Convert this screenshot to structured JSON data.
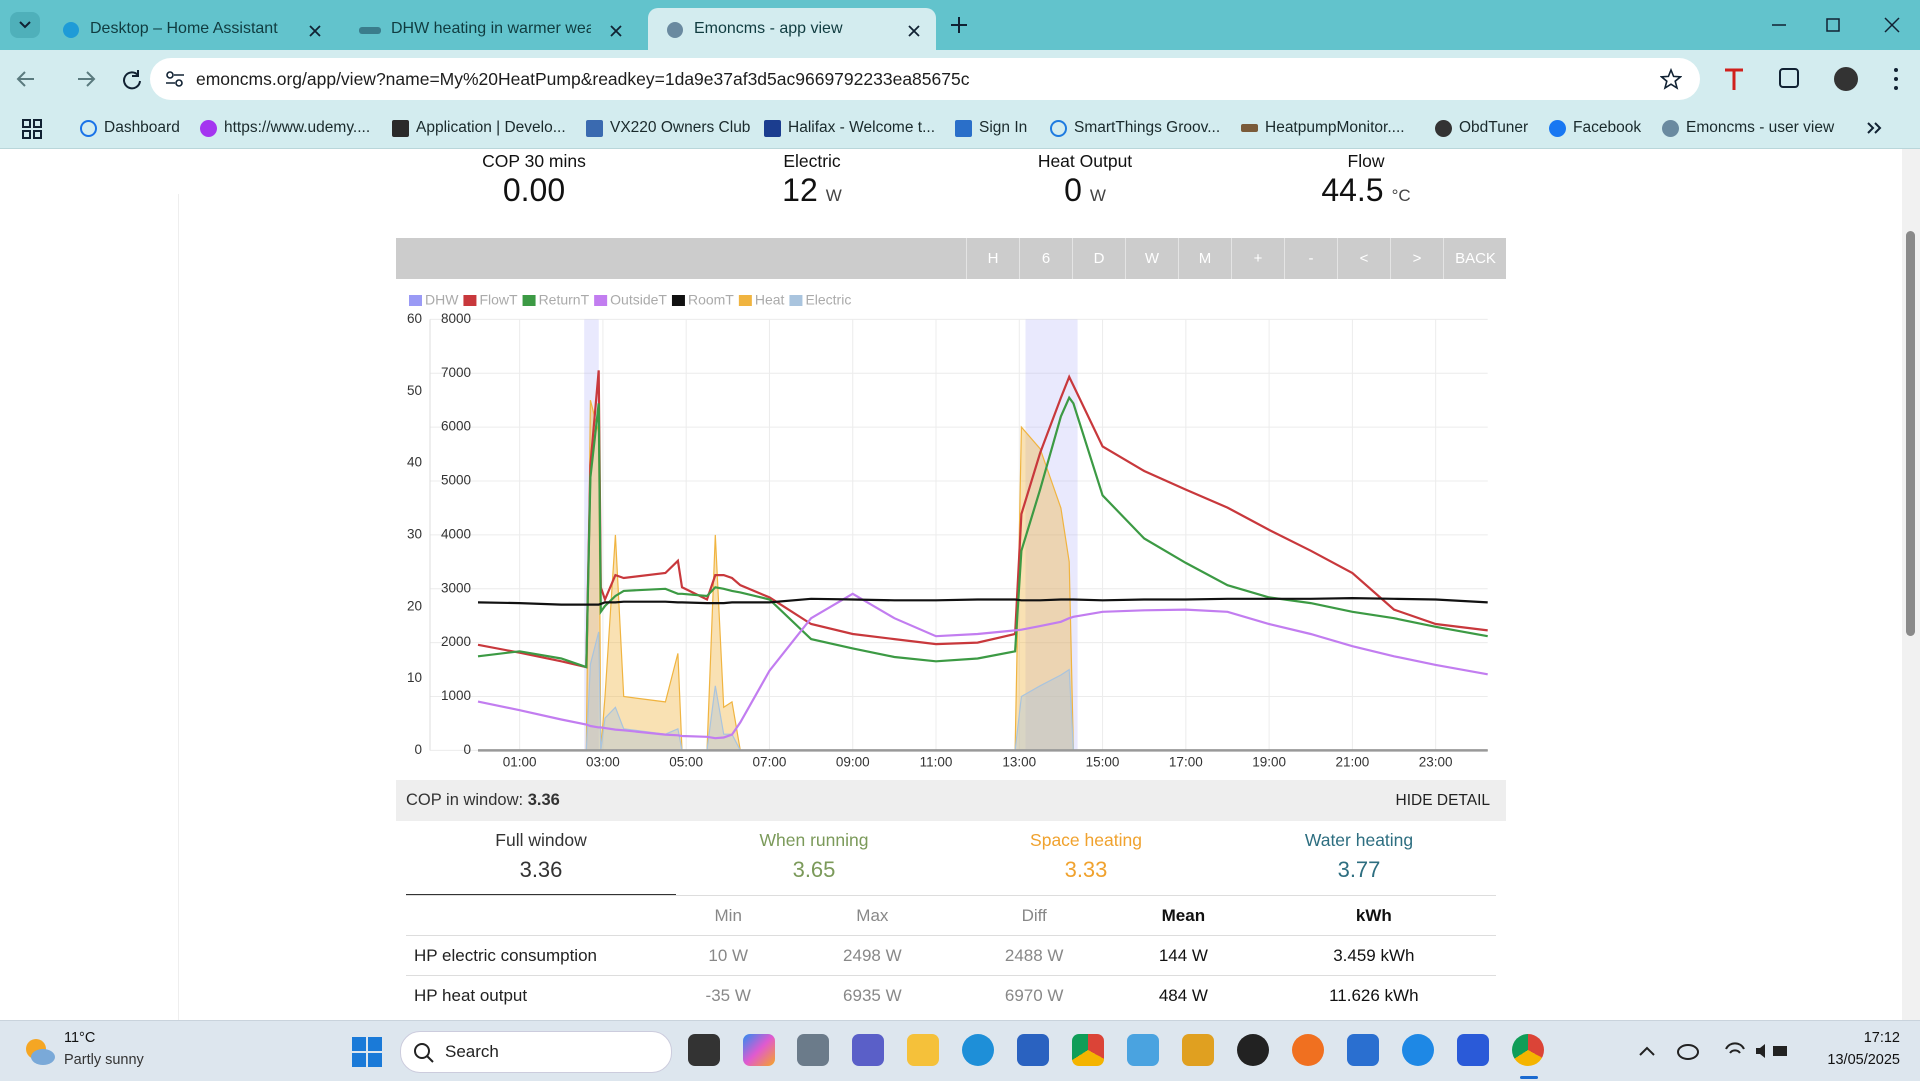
{
  "browser": {
    "tabs": [
      "Desktop – Home Assistant",
      "DHW heating in warmer weathe",
      "Emoncms - app view"
    ],
    "url": "emoncms.org/app/view?name=My%20HeatPump&readkey=1da9e37af3d5ac9669792233ea85675c",
    "bookmarks": [
      "Dashboard",
      "https://www.udemy....",
      "Application | Develo...",
      "VX220 Owners Club",
      "Halifax - Welcome t...",
      "Sign In",
      "SmartThings Groov...",
      "HeatpumpMonitor....",
      "ObdTuner",
      "Facebook",
      "Emoncms - user view"
    ]
  },
  "stats": [
    {
      "label": "COP 30 mins",
      "value": "0.00"
    },
    {
      "label": "Electric",
      "value": "12",
      "unit": "W"
    },
    {
      "label": "Heat Output",
      "value": "0",
      "unit": "W"
    },
    {
      "label": "Flow",
      "value": "44.5",
      "unit": "°C"
    }
  ],
  "toolbar": [
    "H",
    "6",
    "D",
    "W",
    "M",
    "+",
    "-",
    "<",
    ">",
    "BACK"
  ],
  "chart_data": {
    "type": "line",
    "x": [
      0,
      1,
      2,
      2.6,
      2.7,
      2.9,
      2.95,
      3.05,
      3.3,
      3.5,
      4.5,
      4.8,
      4.9,
      5.5,
      5.7,
      5.9,
      6.1,
      6.3,
      7,
      8,
      9,
      10,
      11,
      12,
      12.9,
      13.05,
      13.5,
      14,
      14.2,
      14.3,
      15,
      16,
      17,
      18,
      19,
      20,
      21,
      22,
      23,
      24.25
    ],
    "xlim": [
      0,
      24.25
    ],
    "xticks": [
      {
        "value": 1,
        "label": "01:00"
      },
      {
        "value": 3,
        "label": "03:00"
      },
      {
        "value": 5,
        "label": "05:00"
      },
      {
        "value": 7,
        "label": "07:00"
      },
      {
        "value": 9,
        "label": "09:00"
      },
      {
        "value": 11,
        "label": "11:00"
      },
      {
        "value": 13,
        "label": "13:00"
      },
      {
        "value": 15,
        "label": "15:00"
      },
      {
        "value": 17,
        "label": "17:00"
      },
      {
        "value": 19,
        "label": "19:00"
      },
      {
        "value": 21,
        "label": "21:00"
      },
      {
        "value": 23,
        "label": "23:00"
      }
    ],
    "ylim": [
      0,
      60
    ],
    "yticks": [
      0,
      10,
      20,
      30,
      40,
      50,
      60
    ],
    "y2lim": [
      0,
      8000
    ],
    "y2ticks": [
      0,
      1000,
      2000,
      3000,
      4000,
      5000,
      6000,
      7000,
      8000
    ],
    "grid": true,
    "series": [
      {
        "name": "DHW",
        "color": "#9a9af5",
        "style": "band",
        "ranges": [
          [
            2.55,
            2.9
          ],
          [
            13.15,
            14.4
          ]
        ]
      },
      {
        "name": "FlowT",
        "color": "#c8383c",
        "style": "line",
        "values": [
          14.7,
          13.6,
          12.4,
          11.6,
          39.7,
          52.9,
          22.7,
          21,
          24.4,
          24,
          24.7,
          26.4,
          22.7,
          21,
          24.4,
          24.4,
          24,
          23,
          21.3,
          17.6,
          16.2,
          15.5,
          14.8,
          15,
          16.2,
          32.9,
          41.4,
          49.1,
          52,
          50.8,
          42.3,
          38.9,
          36.3,
          33.8,
          30.7,
          27.8,
          24.7,
          19.6,
          17.6,
          16.7
        ]
      },
      {
        "name": "ReturnT",
        "color": "#3c9a44",
        "style": "line",
        "values": [
          13.1,
          13.8,
          12.8,
          11.6,
          38,
          48.3,
          19.3,
          20.1,
          21.5,
          22.2,
          22.5,
          21.8,
          21.8,
          21.5,
          22.7,
          22.5,
          22.2,
          22,
          21,
          15.5,
          14.2,
          13,
          12.4,
          12.8,
          13.8,
          27.8,
          36.3,
          46.5,
          49.1,
          48.3,
          35.5,
          29.5,
          26.1,
          23,
          21.3,
          20.5,
          19.3,
          18.4,
          17.2,
          15.9
        ]
      },
      {
        "name": "OutsideT",
        "color": "#c27df0",
        "style": "line",
        "values": [
          6.8,
          5.6,
          4.3,
          3.6,
          3.4,
          3.2,
          3.2,
          3.1,
          2.9,
          2.8,
          2.2,
          2.1,
          2,
          1.9,
          1.7,
          1.8,
          2.2,
          3.9,
          11.1,
          18.4,
          21.8,
          18.4,
          15.9,
          16.2,
          16.7,
          16.8,
          17.3,
          17.9,
          18.4,
          18.6,
          19.3,
          19.5,
          19.6,
          19.3,
          17.6,
          16.2,
          14.5,
          13.1,
          11.9,
          10.6
        ]
      },
      {
        "name": "RoomT",
        "color": "#111111",
        "style": "line",
        "values": [
          20.6,
          20.5,
          20.3,
          20.3,
          20.3,
          20.3,
          20.4,
          20.6,
          20.6,
          20.7,
          20.7,
          20.6,
          20.6,
          20.5,
          20.5,
          20.5,
          20.6,
          20.6,
          20.6,
          21.1,
          21,
          20.9,
          20.9,
          21,
          21,
          20.9,
          20.9,
          21,
          21,
          21,
          20.9,
          21,
          21,
          21.1,
          21.1,
          21.1,
          21.2,
          21.1,
          21,
          20.6
        ]
      },
      {
        "name": "Heat",
        "color": "#f0b440",
        "style": "area",
        "axis": "y2",
        "values": [
          0,
          0,
          0,
          0,
          6500,
          5900,
          0,
          1000,
          4000,
          1000,
          900,
          1800,
          0,
          0,
          4000,
          800,
          900,
          0,
          0,
          0,
          0,
          0,
          0,
          0,
          0,
          6000,
          5600,
          4500,
          3500,
          0,
          0,
          0,
          0,
          0,
          0,
          0,
          0,
          0,
          0,
          0
        ]
      },
      {
        "name": "Electric",
        "color": "#a9c4de",
        "style": "area",
        "axis": "y2",
        "values": [
          0,
          0,
          0,
          0,
          1600,
          2200,
          0,
          600,
          800,
          400,
          300,
          400,
          0,
          0,
          1200,
          300,
          300,
          0,
          0,
          0,
          0,
          0,
          0,
          0,
          0,
          1000,
          1200,
          1400,
          1500,
          0,
          0,
          0,
          0,
          0,
          0,
          0,
          0,
          0,
          0,
          0
        ]
      }
    ]
  },
  "cop_window": {
    "label": "COP in window:",
    "value": "3.36",
    "toggle": "HIDE DETAIL"
  },
  "cop_tabs": [
    {
      "label": "Full window",
      "value": "3.36"
    },
    {
      "label": "When running",
      "value": "3.65"
    },
    {
      "label": "Space heating",
      "value": "3.33"
    },
    {
      "label": "Water heating",
      "value": "3.77"
    }
  ],
  "table": {
    "header": [
      "Min",
      "Max",
      "Diff",
      "Mean",
      "kWh"
    ],
    "rows": [
      [
        "HP electric consumption",
        "10 W",
        "2498 W",
        "2488 W",
        "144 W",
        "3.459 kWh"
      ],
      [
        "HP heat output",
        "-35 W",
        "6935 W",
        "6970 W",
        "484 W",
        "11.626 kWh"
      ]
    ]
  },
  "taskbar": {
    "temperature": "11°C",
    "weather": "Partly sunny",
    "search": "Search",
    "time": "17:12",
    "date": "13/05/2025"
  }
}
